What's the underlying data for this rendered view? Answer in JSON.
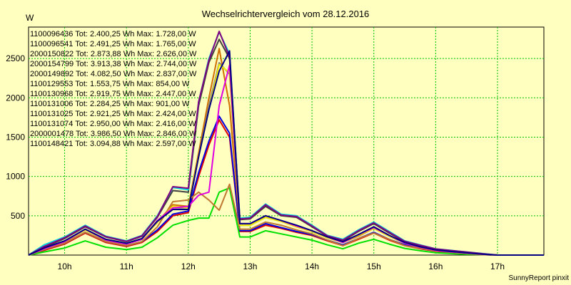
{
  "chart_data": {
    "type": "line",
    "title": "Wechselrichtervergleich vom 28.12.2016",
    "ylabel": "W",
    "xlabel": "",
    "credit": "SunnyReport pinxit",
    "grid": true,
    "legend_placement": "top-left",
    "x_ticks": [
      "10h",
      "11h",
      "12h",
      "13h",
      "14h",
      "15h",
      "16h",
      "17h"
    ],
    "y_ticks": [
      500,
      1000,
      1500,
      2000,
      2500
    ],
    "xlim": [
      "09:25",
      "17:45"
    ],
    "ylim": [
      0,
      2900
    ],
    "x": [
      "09:25",
      "09:40",
      "10:00",
      "10:20",
      "10:40",
      "11:00",
      "11:15",
      "11:30",
      "11:45",
      "12:00",
      "12:10",
      "12:20",
      "12:30",
      "12:40",
      "12:50",
      "13:00",
      "13:15",
      "13:30",
      "13:45",
      "14:00",
      "14:15",
      "14:30",
      "14:45",
      "15:00",
      "15:15",
      "15:30",
      "15:45",
      "16:00",
      "16:15",
      "16:30",
      "16:45",
      "17:00",
      "17:15",
      "17:30",
      "17:45"
    ],
    "series": [
      {
        "name": "1100096436",
        "label": "1100096436 Tot: 2.400,25 Wh Max: 1.728,00 W",
        "color": "#e00000",
        "values": [
          0,
          60,
          140,
          280,
          160,
          110,
          160,
          300,
          500,
          540,
          1000,
          1400,
          1720,
          1500,
          300,
          300,
          380,
          340,
          290,
          250,
          180,
          120,
          200,
          280,
          190,
          120,
          80,
          50,
          30,
          20,
          5,
          0,
          0,
          0,
          0
        ]
      },
      {
        "name": "1100096541",
        "label": "1100096541 Tot: 2.491,25 Wh Max: 1.765,00 W",
        "color": "#0000e0",
        "values": [
          0,
          70,
          150,
          290,
          170,
          120,
          170,
          320,
          520,
          560,
          1050,
          1450,
          1765,
          1550,
          310,
          310,
          400,
          350,
          300,
          260,
          190,
          130,
          210,
          290,
          200,
          130,
          85,
          55,
          35,
          20,
          5,
          0,
          0,
          0,
          0
        ]
      },
      {
        "name": "2000150822",
        "label": "2000150822 Tot: 2.873,88 Wh Max: 2.626,00 W",
        "color": "#d07000",
        "values": [
          0,
          80,
          170,
          320,
          190,
          140,
          200,
          420,
          640,
          620,
          1300,
          2000,
          2626,
          1900,
          380,
          380,
          480,
          430,
          360,
          300,
          220,
          160,
          240,
          340,
          240,
          150,
          100,
          60,
          40,
          25,
          10,
          0,
          0,
          0,
          0
        ]
      },
      {
        "name": "2000154799",
        "label": "2000154799 Tot: 3.913,38 Wh Max: 2.744,00 W",
        "color": "#404040",
        "values": [
          0,
          100,
          210,
          360,
          230,
          170,
          240,
          480,
          820,
          800,
          1900,
          2450,
          2744,
          2500,
          450,
          460,
          620,
          500,
          480,
          360,
          240,
          180,
          300,
          400,
          280,
          170,
          120,
          75,
          55,
          35,
          15,
          0,
          0,
          0,
          0
        ]
      },
      {
        "name": "2000149892",
        "label": "2000149892 Tot: 4.082,50 Wh Max: 2.837,00 W",
        "color": "#00d8e0",
        "values": [
          0,
          130,
          230,
          380,
          240,
          180,
          250,
          500,
          860,
          830,
          1950,
          2500,
          2837,
          2560,
          470,
          480,
          650,
          520,
          500,
          380,
          250,
          200,
          320,
          420,
          300,
          180,
          130,
          80,
          60,
          40,
          20,
          0,
          0,
          0,
          0
        ]
      },
      {
        "name": "1100129553",
        "label": "1100129553 Tot: 1.553,75 Wh Max: 854,00 W",
        "color": "#00e000",
        "values": [
          0,
          40,
          90,
          180,
          100,
          70,
          100,
          220,
          380,
          440,
          470,
          470,
          800,
          854,
          230,
          230,
          310,
          270,
          230,
          190,
          130,
          80,
          150,
          200,
          140,
          85,
          55,
          30,
          20,
          10,
          5,
          0,
          0,
          0,
          0
        ]
      },
      {
        "name": "1100130968",
        "label": "1100130968 Tot: 2.919,75 Wh Max: 2.447,00 W",
        "color": "#808080",
        "values": [
          0,
          80,
          170,
          320,
          190,
          140,
          200,
          420,
          600,
          600,
          1250,
          1900,
          2447,
          2300,
          380,
          380,
          480,
          430,
          360,
          300,
          220,
          160,
          250,
          340,
          240,
          150,
          100,
          60,
          40,
          25,
          10,
          0,
          0,
          0,
          0
        ]
      },
      {
        "name": "1100131006",
        "label": "1100131006 Tot: 2.284,25 Wh Max: 901,00 W",
        "color": "#c07830",
        "values": [
          0,
          70,
          150,
          290,
          170,
          120,
          170,
          360,
          680,
          700,
          800,
          700,
          570,
          901,
          330,
          330,
          420,
          380,
          320,
          270,
          190,
          120,
          210,
          280,
          200,
          120,
          85,
          55,
          35,
          20,
          5,
          0,
          0,
          0,
          0
        ]
      },
      {
        "name": "1100131025",
        "label": "1100131025 Tot: 2.921,25 Wh Max: 2.424,00 W",
        "color": "#f0f000",
        "values": [
          0,
          80,
          170,
          320,
          190,
          140,
          200,
          420,
          620,
          600,
          1250,
          1850,
          2424,
          2320,
          380,
          380,
          480,
          430,
          360,
          300,
          220,
          160,
          250,
          340,
          240,
          150,
          100,
          60,
          40,
          25,
          10,
          0,
          0,
          0,
          0
        ]
      },
      {
        "name": "1100131074",
        "label": "1100131074 Tot: 2.950,00 Wh Max: 2.416,00 W",
        "color": "#e000e0",
        "values": [
          0,
          80,
          170,
          330,
          190,
          140,
          200,
          440,
          600,
          620,
          760,
          800,
          1900,
          2416,
          400,
          400,
          500,
          440,
          370,
          310,
          230,
          160,
          260,
          350,
          250,
          150,
          100,
          60,
          40,
          25,
          10,
          0,
          0,
          0,
          0
        ]
      },
      {
        "name": "2000001478",
        "label": "2000001478 Tot: 3.986,50 Wh Max: 2.846,00 W",
        "color": "#800080",
        "values": [
          0,
          110,
          220,
          370,
          235,
          175,
          245,
          490,
          870,
          850,
          1950,
          2480,
          2846,
          2520,
          460,
          470,
          640,
          510,
          490,
          370,
          245,
          190,
          310,
          410,
          290,
          175,
          125,
          78,
          58,
          38,
          18,
          0,
          0,
          0,
          0
        ]
      },
      {
        "name": "1100148421",
        "label": "1100148421 Tot: 3.094,88 Wh Max: 2.597,00 W",
        "color": "#000080",
        "values": [
          0,
          90,
          180,
          330,
          200,
          150,
          210,
          430,
          580,
          580,
          1250,
          1850,
          2340,
          2597,
          400,
          400,
          500,
          440,
          380,
          310,
          230,
          170,
          260,
          360,
          250,
          160,
          105,
          65,
          45,
          28,
          12,
          0,
          0,
          0,
          0
        ]
      }
    ]
  }
}
